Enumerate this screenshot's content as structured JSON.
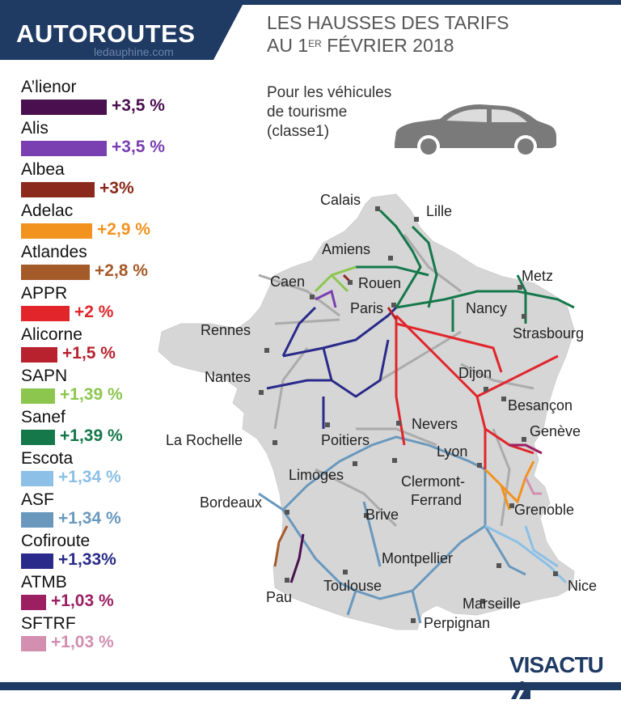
{
  "header": {
    "brand_title": "AUTOROUTES",
    "brand_sub": "ledauphine.com",
    "headline_line1": "LES HAUSSES DES TARIFS",
    "headline_line2_pre": "AU 1",
    "headline_line2_sup": "ER",
    "headline_line2_post": " FÉVRIER 2018"
  },
  "vehicle": {
    "line1": "Pour les véhicules",
    "line2": "de tourisme",
    "line3": "(classe1)",
    "icon": "car-icon"
  },
  "legend": [
    {
      "name": "A’lienor",
      "pct": "+3,5 %",
      "color": "#4a0f4f",
      "level": 3.5
    },
    {
      "name": "Alis",
      "pct": "+3,5 %",
      "color": "#7a3fb0",
      "level": 3.5
    },
    {
      "name": "Albea",
      "pct": "+3%",
      "color": "#8b2a1c",
      "level": 3
    },
    {
      "name": "Adelac",
      "pct": "+2,9 %",
      "color": "#f2921f",
      "level": 2.9
    },
    {
      "name": "Atlandes",
      "pct": "+2,8 %",
      "color": "#a55a2a",
      "level": 2.8
    },
    {
      "name": "APPR",
      "pct": "+2 %",
      "color": "#e1252b",
      "level": 2
    },
    {
      "name": "Alicorne",
      "pct": "+1,5 %",
      "color": "#b8222e",
      "level": 1.5
    },
    {
      "name": "SAPN",
      "pct": "+1,39 %",
      "color": "#8cc64e",
      "level": 1.39
    },
    {
      "name": "Sanef",
      "pct": "+1,39 %",
      "color": "#15784a",
      "level": 1.39
    },
    {
      "name": "Escota",
      "pct": "+1,34 %",
      "color": "#8cc0e6",
      "level": 1.34
    },
    {
      "name": "ASF",
      "pct": "+1,34 %",
      "color": "#6a98bd",
      "level": 1.34
    },
    {
      "name": "Cofiroute",
      "pct": "+1,33%",
      "color": "#2a2a8a",
      "level": 1.33
    },
    {
      "name": "ATMB",
      "pct": "+1,03 %",
      "color": "#9c1f62",
      "level": 1.03
    },
    {
      "name": "SFTRF",
      "pct": "+1,03 %",
      "color": "#d28fb0",
      "level": 1.03
    }
  ],
  "cities": [
    {
      "key": "calais",
      "label": "Calais"
    },
    {
      "key": "lille",
      "label": "Lille"
    },
    {
      "key": "amiens",
      "label": "Amiens"
    },
    {
      "key": "caen",
      "label": "Caen"
    },
    {
      "key": "rouen",
      "label": "Rouen"
    },
    {
      "key": "metz",
      "label": "Metz"
    },
    {
      "key": "paris",
      "label": "Paris"
    },
    {
      "key": "nancy",
      "label": "Nancy"
    },
    {
      "key": "rennes",
      "label": "Rennes"
    },
    {
      "key": "strasbourg",
      "label": "Strasbourg"
    },
    {
      "key": "nantes",
      "label": "Nantes"
    },
    {
      "key": "dijon",
      "label": "Dijon"
    },
    {
      "key": "besancon",
      "label": "Besançon"
    },
    {
      "key": "nevers",
      "label": "Nevers"
    },
    {
      "key": "geneve",
      "label": "Genève"
    },
    {
      "key": "larochelle",
      "label": "La Rochelle"
    },
    {
      "key": "poitiers",
      "label": "Poitiers"
    },
    {
      "key": "lyon",
      "label": "Lyon"
    },
    {
      "key": "limoges",
      "label": "Limoges"
    },
    {
      "key": "clermont",
      "label": "Clermont-"
    },
    {
      "key": "ferrand",
      "label": "Ferrand"
    },
    {
      "key": "bordeaux",
      "label": "Bordeaux"
    },
    {
      "key": "grenoble",
      "label": "Grenoble"
    },
    {
      "key": "brive",
      "label": "Brive"
    },
    {
      "key": "montpellier",
      "label": "Montpellier"
    },
    {
      "key": "nice",
      "label": "Nice"
    },
    {
      "key": "toulouse",
      "label": "Toulouse"
    },
    {
      "key": "pau",
      "label": "Pau"
    },
    {
      "key": "marseille",
      "label": "Marseille"
    },
    {
      "key": "perpignan",
      "label": "Perpignan"
    }
  ],
  "footer": {
    "logo_vis": "VIS",
    "logo_actu": "ACTU"
  }
}
